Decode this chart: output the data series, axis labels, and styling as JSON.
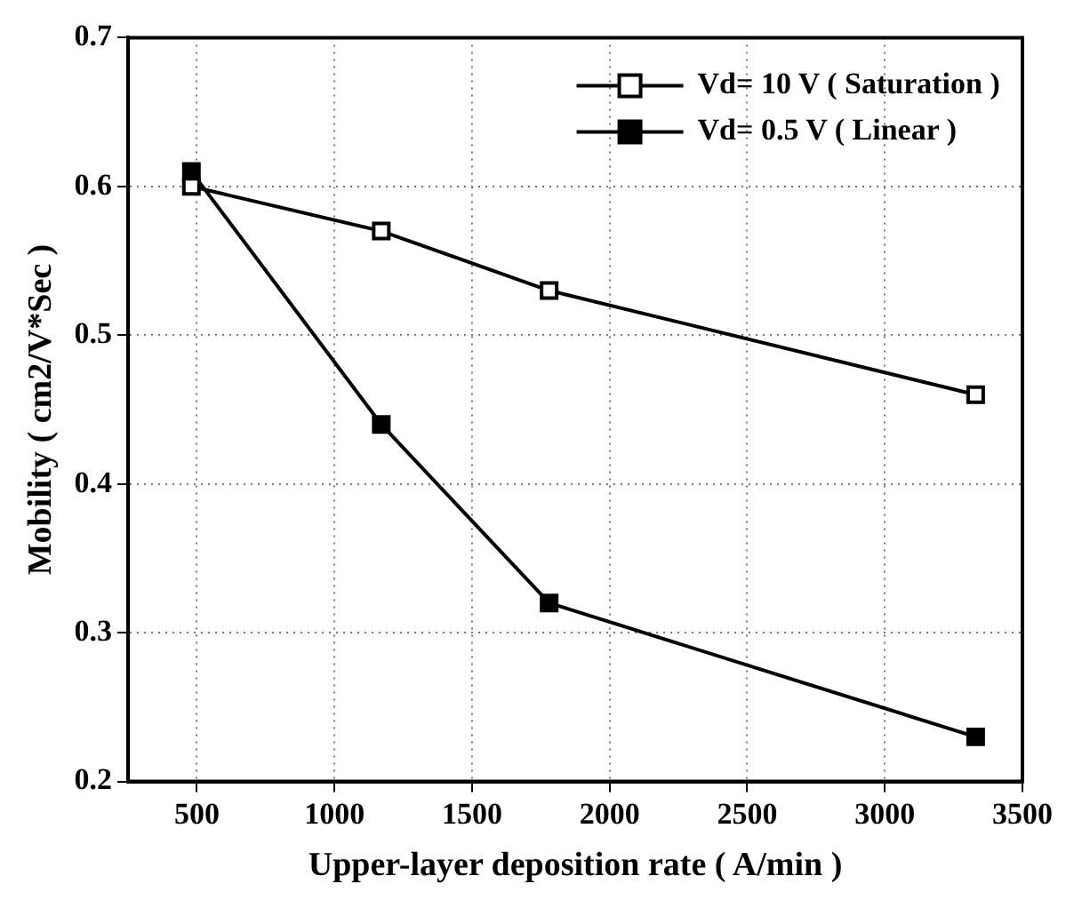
{
  "chart_data": {
    "type": "line",
    "xlabel": "Upper-layer deposition rate ( A/min )",
    "ylabel": "Mobility ( cm2/V*Sec )",
    "xlim": [
      250,
      3500
    ],
    "xticks": [
      500,
      1000,
      1500,
      2000,
      2500,
      3000,
      3500
    ],
    "ylim": [
      0.2,
      0.7
    ],
    "yticks": [
      0.2,
      0.3,
      0.4,
      0.5,
      0.6,
      0.7
    ],
    "grid": true,
    "legend": "top right",
    "marker": "square",
    "line_style": "solid",
    "series": [
      {
        "name": "Vd= 10 V ( Saturation )",
        "color": "#000000",
        "x": [
          480,
          1170,
          1780,
          3330
        ],
        "values": [
          0.6,
          0.57,
          0.53,
          0.46
        ]
      },
      {
        "name": "Vd= 0.5 V ( Linear )",
        "color": "#000000",
        "x": [
          480,
          1170,
          1780,
          3330
        ],
        "values": [
          0.61,
          0.44,
          0.32,
          0.23
        ]
      }
    ]
  }
}
